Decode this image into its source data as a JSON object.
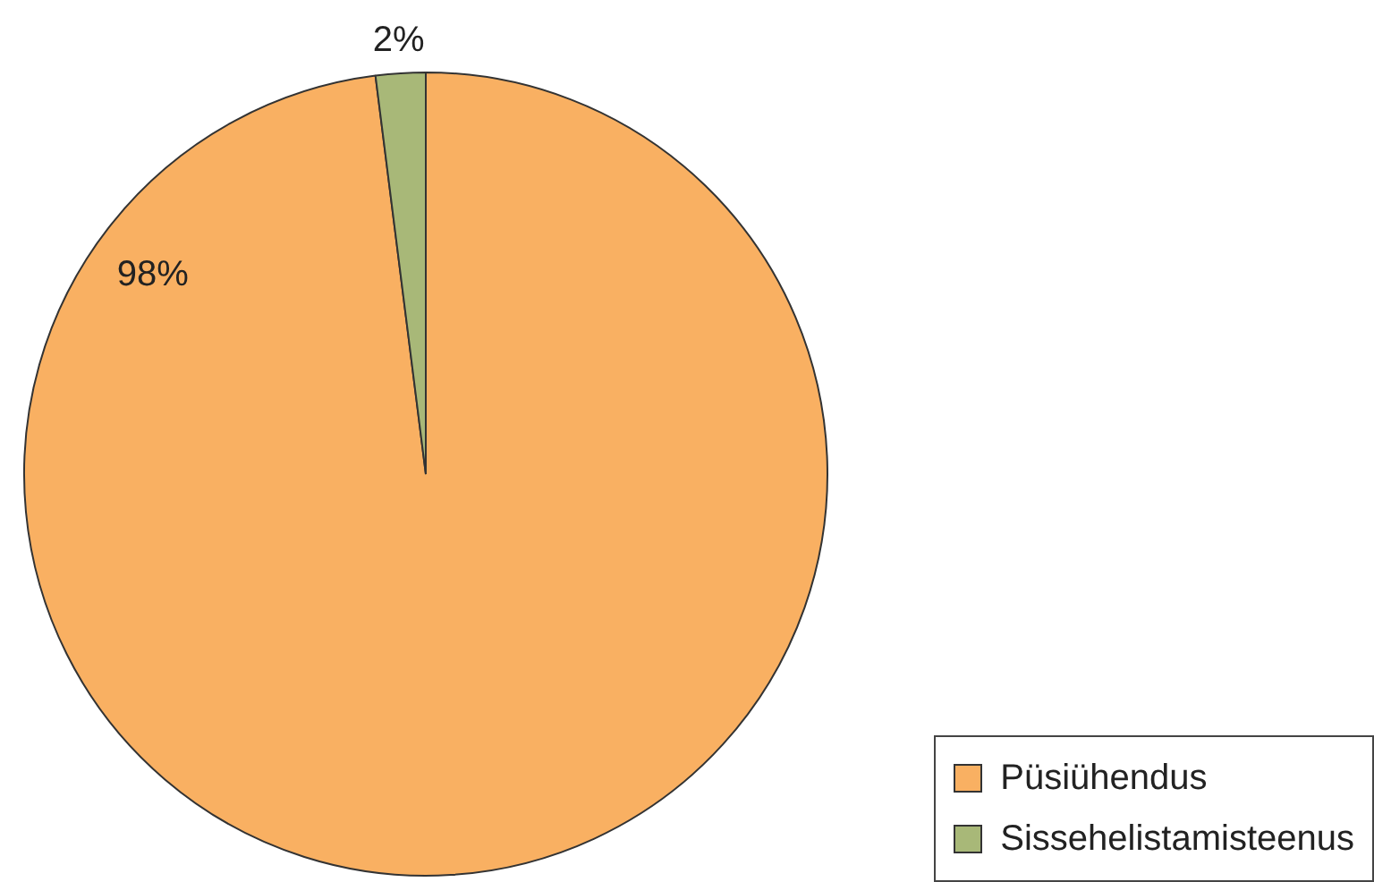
{
  "chart_data": {
    "type": "pie",
    "categories": [
      "Püsiühendus",
      "Sissehelistamisteenus"
    ],
    "values": [
      98,
      2
    ],
    "colors": [
      "#f9b062",
      "#a8b878"
    ],
    "value_labels": [
      "98%",
      "2%"
    ],
    "legend": "bottom right"
  }
}
